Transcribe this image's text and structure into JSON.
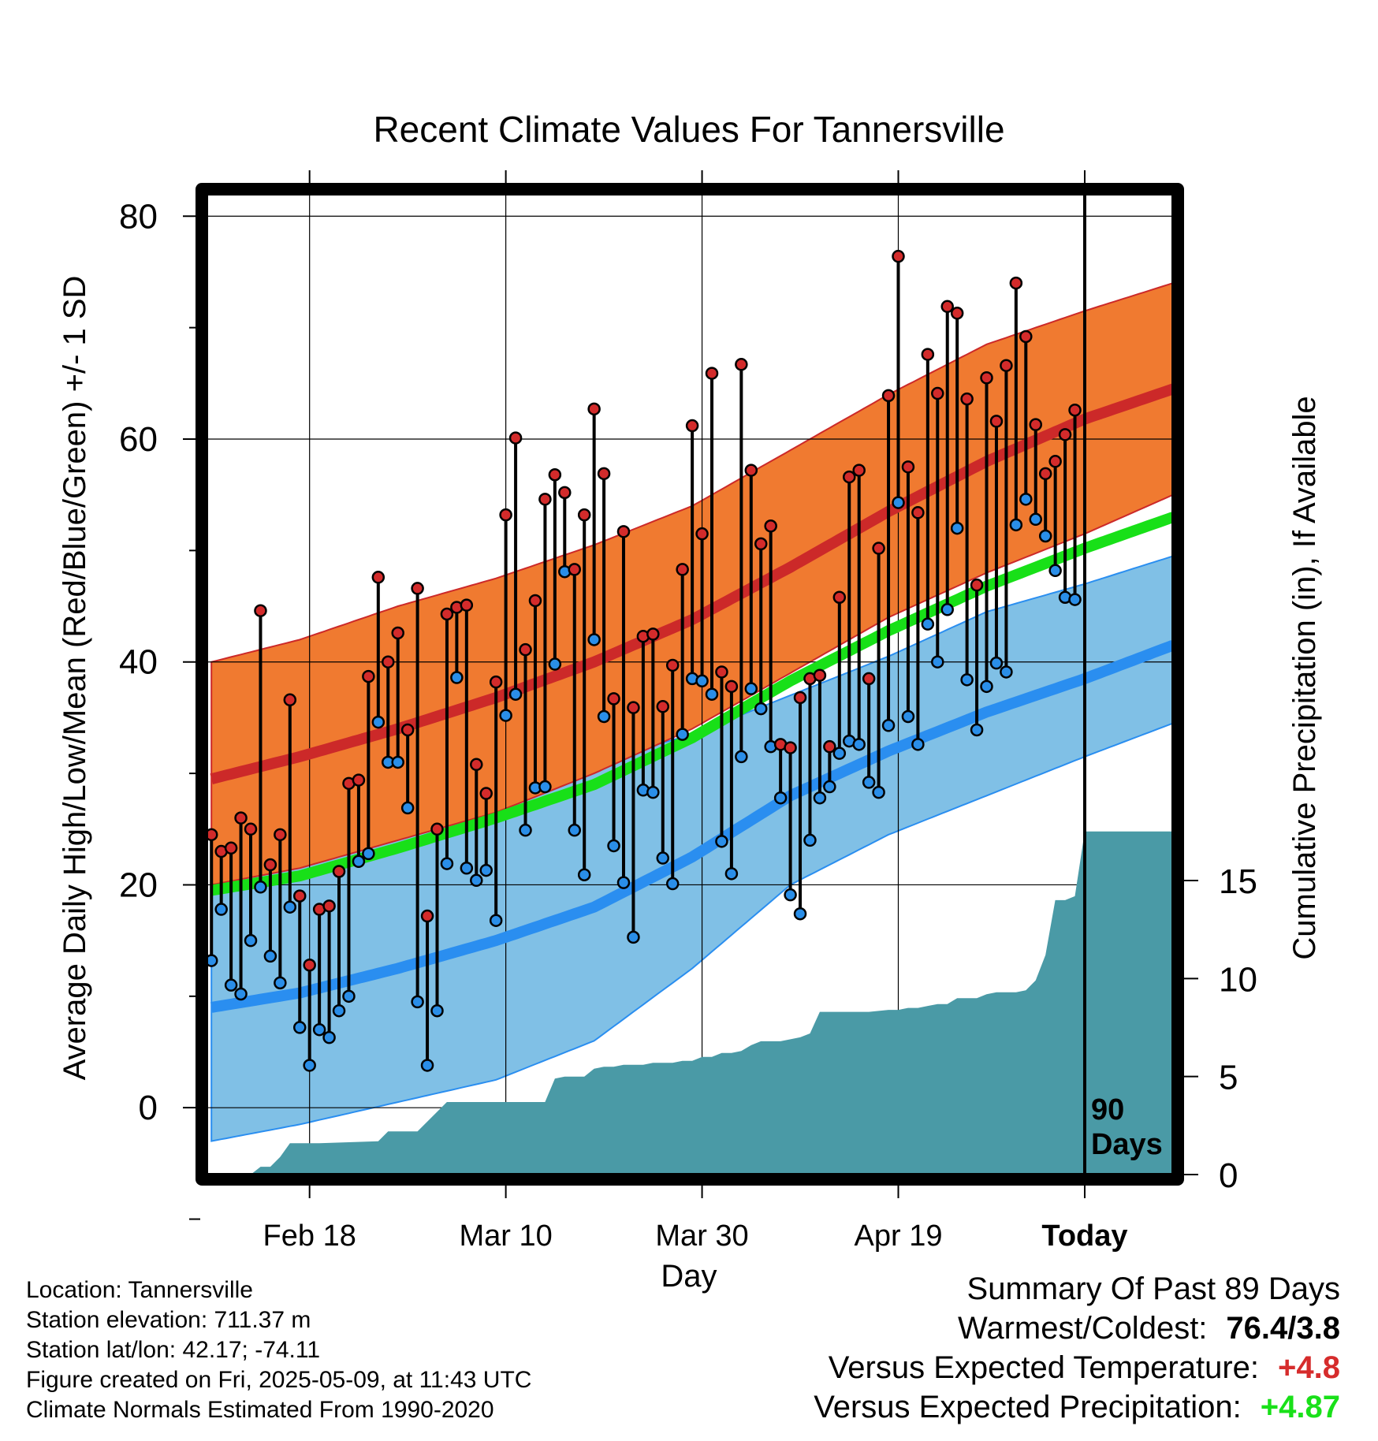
{
  "title": "Recent Climate Values For Tannersville",
  "colors": {
    "high_band": "#f07a30",
    "high_line": "#cc2929",
    "low_band": "#80c0e6",
    "low_line": "#2a8ef0",
    "mean_line": "#18e018",
    "precip": "#4a9aa6",
    "high_dot": "#d32b2b",
    "low_dot": "#2a8ee8",
    "positive_temp": "#d62c2c",
    "positive_precip": "#19e019"
  },
  "chart_data": {
    "type": "line",
    "title": "Recent Climate Values For Tannersville",
    "xlabel": "Day",
    "ylabel": "Average Daily High/Low/Mean (Red/Blue/Green) +/- 1 SD",
    "y2label": "Cumulative Precipitation (in), If Available",
    "x_range": [
      -89,
      9
    ],
    "xlim": [
      -89.5,
      9
    ],
    "ylim": [
      -6,
      82
    ],
    "y_ticks": [
      0,
      20,
      40,
      60,
      80
    ],
    "y2_ticks": [
      0,
      5,
      10,
      15
    ],
    "y2lim": [
      0,
      15
    ],
    "x_ticks": [
      {
        "x": -79,
        "label": "Feb 18"
      },
      {
        "x": -59,
        "label": "Mar 10"
      },
      {
        "x": -39,
        "label": "Mar 30"
      },
      {
        "x": -19,
        "label": "Apr 19"
      },
      {
        "x": 0,
        "label": "Today"
      }
    ],
    "today_label": "90\nDays",
    "normals": {
      "x": [
        -89,
        -80,
        -70,
        -60,
        -50,
        -40,
        -30,
        -20,
        -10,
        0,
        9
      ],
      "high_mean": [
        29.5,
        31.5,
        34,
        36.8,
        40,
        43.8,
        48.5,
        53.5,
        58,
        61.8,
        64.5
      ],
      "high_upper": [
        40,
        42,
        45,
        47.5,
        50.5,
        54,
        59,
        64,
        68.5,
        71.5,
        74
      ],
      "high_lower": [
        20,
        21.5,
        24,
        26.5,
        30,
        34,
        39,
        44,
        48,
        51.5,
        55
      ],
      "low_mean": [
        9,
        10.3,
        12.5,
        15,
        18,
        22.5,
        28,
        32,
        35.5,
        38.5,
        41.5
      ],
      "low_upper": [
        20.5,
        22,
        25,
        28,
        31,
        33.5,
        37,
        40.5,
        44.5,
        47,
        49.5
      ],
      "low_lower": [
        -3,
        -1.5,
        0.5,
        2.5,
        6,
        12.5,
        20,
        24.5,
        28,
        31.5,
        34.5
      ],
      "mean": [
        19.5,
        20.8,
        23.3,
        26,
        29,
        33.2,
        38.3,
        42.8,
        46.8,
        50.2,
        53
      ]
    },
    "series": [
      {
        "name": "High",
        "x": [
          -89,
          -88,
          -87,
          -86,
          -85,
          -84,
          -83,
          -82,
          -81,
          -80,
          -79,
          -78,
          -77,
          -76,
          -75,
          -74,
          -73,
          -72,
          -71,
          -70,
          -69,
          -68,
          -67,
          -66,
          -65,
          -64,
          -63,
          -62,
          -61,
          -60,
          -59,
          -58,
          -57,
          -56,
          -55,
          -54,
          -53,
          -52,
          -51,
          -50,
          -49,
          -48,
          -47,
          -46,
          -45,
          -44,
          -43,
          -42,
          -41,
          -40,
          -39,
          -38,
          -37,
          -36,
          -35,
          -34,
          -33,
          -32,
          -31,
          -30,
          -29,
          -28,
          -27,
          -26,
          -25,
          -24,
          -23,
          -22,
          -21,
          -20,
          -19,
          -18,
          -17,
          -16,
          -15,
          -14,
          -13,
          -12,
          -11,
          -10,
          -9,
          -8,
          -7,
          -6,
          -5,
          -4,
          -3,
          -2,
          -1
        ],
        "values": [
          24.5,
          23,
          23.3,
          26,
          25,
          44.6,
          21.8,
          24.5,
          36.6,
          19,
          12.8,
          17.8,
          18.1,
          21.2,
          29.1,
          29.4,
          38.7,
          47.6,
          40,
          42.6,
          33.9,
          46.6,
          17.2,
          25,
          44.3,
          44.9,
          45.1,
          30.8,
          28.2,
          38.2,
          53.2,
          60.1,
          41.1,
          45.5,
          54.6,
          56.8,
          55.2,
          48.3,
          53.2,
          62.7,
          56.9,
          36.7,
          51.7,
          35.9,
          42.3,
          42.5,
          36,
          39.7,
          48.3,
          61.2,
          51.5,
          65.9,
          39.1,
          37.8,
          66.7,
          57.2,
          50.6,
          52.2,
          32.6,
          32.3,
          36.8,
          38.5,
          38.8,
          32.4,
          45.8,
          56.6,
          57.2,
          38.5,
          50.2,
          63.9,
          76.4,
          57.5,
          53.4,
          67.6,
          64.1,
          71.9,
          71.3,
          63.6,
          46.9,
          65.5,
          61.6,
          66.6,
          74,
          69.2,
          61.3,
          56.9,
          58,
          60.4,
          62.6
        ]
      },
      {
        "name": "Low",
        "x": [
          -89,
          -88,
          -87,
          -86,
          -85,
          -84,
          -83,
          -82,
          -81,
          -80,
          -79,
          -78,
          -77,
          -76,
          -75,
          -74,
          -73,
          -72,
          -71,
          -70,
          -69,
          -68,
          -67,
          -66,
          -65,
          -64,
          -63,
          -62,
          -61,
          -60,
          -59,
          -58,
          -57,
          -56,
          -55,
          -54,
          -53,
          -52,
          -51,
          -50,
          -49,
          -48,
          -47,
          -46,
          -45,
          -44,
          -43,
          -42,
          -41,
          -40,
          -39,
          -38,
          -37,
          -36,
          -35,
          -34,
          -33,
          -32,
          -31,
          -30,
          -29,
          -28,
          -27,
          -26,
          -25,
          -24,
          -23,
          -22,
          -21,
          -20,
          -19,
          -18,
          -17,
          -16,
          -15,
          -14,
          -13,
          -12,
          -11,
          -10,
          -9,
          -8,
          -7,
          -6,
          -5,
          -4,
          -3,
          -2,
          -1
        ],
        "values": [
          13.2,
          17.8,
          11,
          10.2,
          15,
          19.8,
          13.6,
          11.2,
          18,
          7.2,
          3.8,
          7,
          6.3,
          8.7,
          10,
          22.1,
          22.8,
          34.6,
          31,
          31,
          26.9,
          9.5,
          3.8,
          8.7,
          21.9,
          38.6,
          21.5,
          20.4,
          21.3,
          16.8,
          35.2,
          37.1,
          24.9,
          28.7,
          28.8,
          39.8,
          48.1,
          24.9,
          20.9,
          42,
          35.1,
          23.5,
          20.2,
          15.3,
          28.5,
          28.3,
          22.4,
          20.1,
          33.5,
          38.5,
          38.3,
          37.1,
          23.9,
          21,
          31.5,
          37.6,
          35.8,
          32.4,
          27.8,
          19.1,
          17.4,
          24,
          27.8,
          28.8,
          31.8,
          32.9,
          32.6,
          29.2,
          28.3,
          34.3,
          54.3,
          35.1,
          32.6,
          43.4,
          40,
          44.7,
          52,
          38.4,
          33.9,
          37.8,
          39.9,
          39.1,
          52.3,
          54.6,
          52.8,
          51.3,
          48.2,
          45.8,
          45.6
        ]
      },
      {
        "name": "Precipitation",
        "x": [
          -89,
          -85,
          -84,
          -83,
          -82,
          -81,
          -80,
          -79,
          -78,
          -72,
          -71,
          -70,
          -69,
          -68,
          -65,
          -64,
          -63,
          -62,
          -59,
          -55,
          -54,
          -53,
          -52,
          -51,
          -50,
          -49,
          -48,
          -47,
          -46,
          -45,
          -44,
          -43,
          -42,
          -41,
          -40,
          -39,
          -38,
          -37,
          -36,
          -35,
          -34,
          -33,
          -32,
          -31,
          -30,
          -29,
          -28,
          -27,
          -26,
          -25,
          -24,
          -23,
          -22,
          -20,
          -19,
          -18,
          -17,
          -16,
          -15,
          -14,
          -13,
          -12,
          -11,
          -10,
          -9,
          -8,
          -7,
          -6,
          -5,
          -4,
          -3,
          -2,
          -1,
          0,
          1,
          9
        ],
        "values": [
          0,
          0,
          0.4,
          0.4,
          0.9,
          1.6,
          1.6,
          1.6,
          1.6,
          1.7,
          2.2,
          2.2,
          2.2,
          2.2,
          3.7,
          3.7,
          3.7,
          3.7,
          3.7,
          3.7,
          4.9,
          5.0,
          5.0,
          5.0,
          5.4,
          5.5,
          5.5,
          5.6,
          5.6,
          5.6,
          5.7,
          5.7,
          5.7,
          5.8,
          5.8,
          6.0,
          6.0,
          6.2,
          6.2,
          6.3,
          6.6,
          6.8,
          6.8,
          6.8,
          6.9,
          7.0,
          7.2,
          8.3,
          8.3,
          8.3,
          8.3,
          8.3,
          8.3,
          8.4,
          8.4,
          8.5,
          8.5,
          8.6,
          8.7,
          8.7,
          9.0,
          9.0,
          9.0,
          9.2,
          9.3,
          9.3,
          9.3,
          9.4,
          9.9,
          11.2,
          14.0,
          14.0,
          14.2,
          17.5,
          17.5,
          17.5
        ]
      }
    ],
    "grid": true
  },
  "location_info": {
    "location": "Location: Tannersville",
    "elevation": "Station elevation: 711.37 m",
    "latlon": "Station lat/lon: 42.17; -74.11",
    "created": "Figure created on Fri, 2025-05-09, at 11:43 UTC",
    "normals": "Climate Normals Estimated From 1990-2020"
  },
  "summary": {
    "heading": "Summary Of Past 89 Days",
    "warmest_coldest_label": "Warmest/Coldest:",
    "warmest_coldest_value": "76.4/3.8",
    "temp_label": "Versus Expected Temperature:",
    "temp_value": "+4.8",
    "precip_label": "Versus Expected Precipitation:",
    "precip_value": "+4.87"
  }
}
